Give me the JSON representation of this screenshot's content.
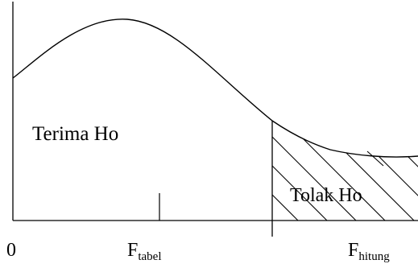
{
  "diagram": {
    "region_accept": "Terima Ho",
    "region_reject": "Tolak Ho",
    "axis_origin": "0",
    "f_table": {
      "base": "F",
      "subscript": "tabel"
    },
    "f_count": {
      "base": "F",
      "subscript": "hitung"
    },
    "colors": {
      "line": "#000000",
      "background": "#ffffff"
    }
  }
}
